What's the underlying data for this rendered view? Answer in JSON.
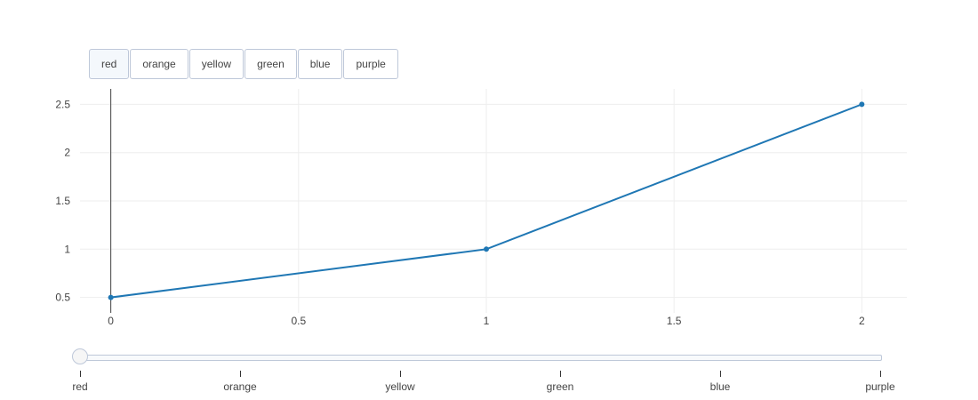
{
  "buttons": [
    "red",
    "orange",
    "yellow",
    "green",
    "blue",
    "purple"
  ],
  "active_button": 0,
  "colors": {
    "line": "#1f77b4",
    "grid": "#eeeeee",
    "cursor": "#444444"
  },
  "chart_data": {
    "type": "line",
    "title": "",
    "xlabel": "",
    "ylabel": "",
    "series": [
      {
        "x": [
          0,
          1,
          2
        ],
        "y": [
          0.5,
          1,
          2.5
        ]
      }
    ],
    "xlim": [
      -0.082,
      2.12
    ],
    "ylim": [
      0.34,
      2.66
    ],
    "xticks": [
      0,
      0.5,
      1,
      1.5,
      2
    ],
    "xtick_labels": [
      "0",
      "0.5",
      "1",
      "1.5",
      "2"
    ],
    "yticks": [
      0.5,
      1,
      1.5,
      2,
      2.5
    ],
    "ytick_labels": [
      "0.5",
      "1",
      "1.5",
      "2",
      "2.5"
    ],
    "grid": true,
    "vertical_marker_x": 0,
    "markers": true
  },
  "slider": {
    "steps": [
      "red",
      "orange",
      "yellow",
      "green",
      "blue",
      "purple"
    ],
    "active": 0
  }
}
